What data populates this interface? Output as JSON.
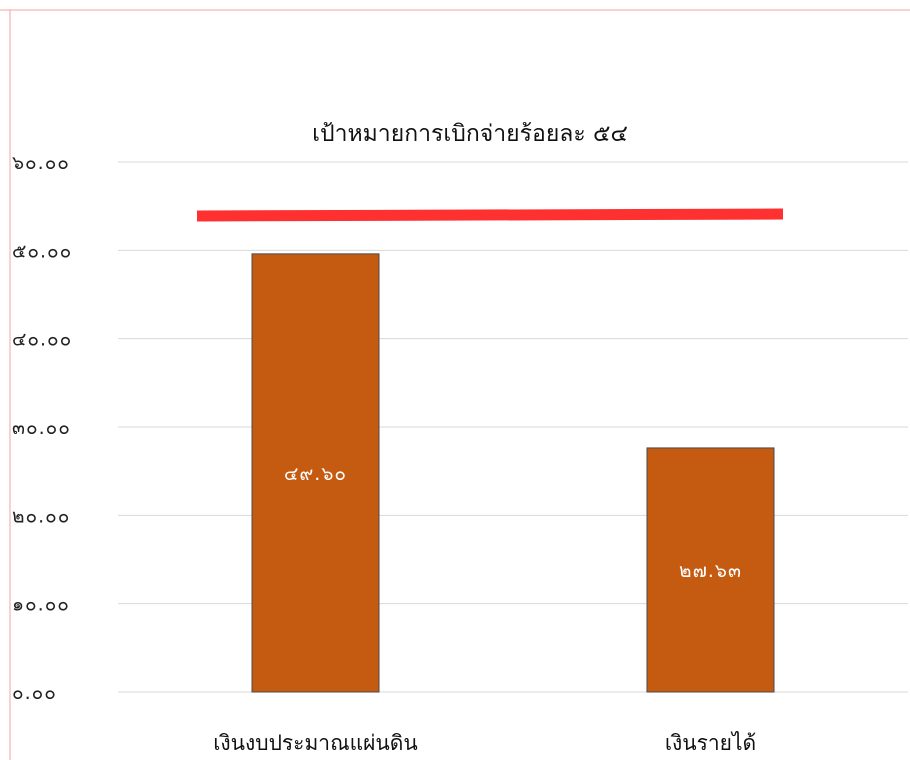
{
  "chart_data": {
    "type": "bar",
    "title": "เป้าหมายการเบิกจ่ายร้อยละ ๕๔",
    "xlabel": "",
    "ylabel": "",
    "ylim": [
      0,
      60
    ],
    "y_ticks": [
      0,
      10,
      20,
      30,
      40,
      50,
      60
    ],
    "y_tick_labels": [
      "๐.๐๐",
      "๑๐.๐๐",
      "๒๐.๐๐",
      "๓๐.๐๐",
      "๔๐.๐๐",
      "๕๐.๐๐",
      "๖๐.๐๐"
    ],
    "categories": [
      "เงินงบประมาณแผ่นดิน",
      "เงินรายได้"
    ],
    "values": [
      49.6,
      27.63
    ],
    "data_labels": [
      "๔๙.๖๐",
      "๒๗.๖๓"
    ],
    "target_line": {
      "value": 54
    },
    "grid": true,
    "legend": "none",
    "colors": {
      "bar": "#C55A11",
      "bar_stroke": "#4A4A4A",
      "target_line": "#FF3030",
      "grid": "#D9D9D9",
      "frame": "#F4A0A0"
    }
  }
}
